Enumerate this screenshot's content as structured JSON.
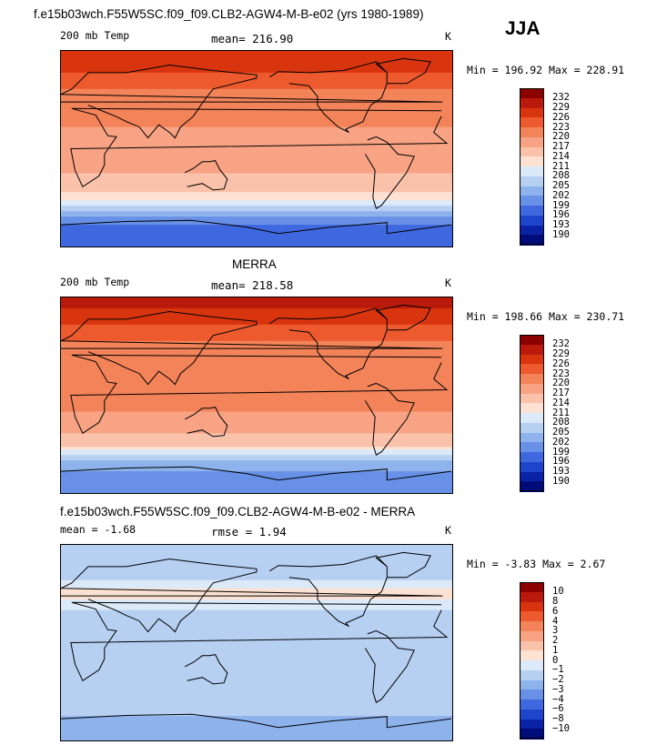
{
  "header": {
    "case_title": "f.e15b03wch.F55W5SC.f09_f09.CLB2-AGW4-M-B-e02 (yrs 1980-1989)",
    "season": "JJA"
  },
  "panels": [
    {
      "id": "model",
      "title": "",
      "left_label": "200 mb Temp",
      "mean_text": "mean= 216.90",
      "units": "K",
      "min_max_text": "Min = 196.92 Max = 228.91"
    },
    {
      "id": "obs",
      "title": "MERRA",
      "left_label": "200 mb Temp",
      "mean_text": "mean= 218.58",
      "units": "K",
      "min_max_text": "Min = 198.66 Max = 230.71"
    },
    {
      "id": "diff",
      "title": "f.e15b03wch.F55W5SC.f09_f09.CLB2-AGW4-M-B-e02 - MERRA",
      "left_label": "mean =  -1.68",
      "mean_text": "rmse =   1.94",
      "units": "K",
      "min_max_text": "Min =  -3.83 Max =   2.67"
    }
  ],
  "chart_data": [
    {
      "type": "heatmap",
      "name": "model 200 mb Temp",
      "mean": 216.9,
      "min": 196.92,
      "max": 228.91,
      "units": "K",
      "colorbar": {
        "labels": [
          "232",
          "229",
          "226",
          "223",
          "220",
          "217",
          "214",
          "211",
          "208",
          "205",
          "202",
          "199",
          "196",
          "193",
          "190"
        ],
        "colors": [
          "#8b0000",
          "#b91a0b",
          "#d8350f",
          "#ec5a2e",
          "#f38359",
          "#f7a384",
          "#fac2aa",
          "#fde2d3",
          "#dbe9f8",
          "#b7d0f2",
          "#8eb2ec",
          "#6890e6",
          "#3f68de",
          "#1f44cc",
          "#0a22a6",
          "#000c7a"
        ]
      },
      "zonal_profile_K": [
        {
          "lat": 90,
          "value": 229
        },
        {
          "lat": 75,
          "value": 227
        },
        {
          "lat": 60,
          "value": 224
        },
        {
          "lat": 45,
          "value": 221
        },
        {
          "lat": 30,
          "value": 222
        },
        {
          "lat": 15,
          "value": 219
        },
        {
          "lat": 0,
          "value": 218
        },
        {
          "lat": -15,
          "value": 218
        },
        {
          "lat": -30,
          "value": 216
        },
        {
          "lat": -45,
          "value": 213
        },
        {
          "lat": -60,
          "value": 203
        },
        {
          "lat": -75,
          "value": 197
        },
        {
          "lat": -90,
          "value": 197
        }
      ]
    },
    {
      "type": "heatmap",
      "name": "MERRA 200 mb Temp",
      "mean": 218.58,
      "min": 198.66,
      "max": 230.71,
      "units": "K",
      "colorbar": {
        "labels": [
          "232",
          "229",
          "226",
          "223",
          "220",
          "217",
          "214",
          "211",
          "208",
          "205",
          "202",
          "199",
          "196",
          "193",
          "190"
        ],
        "colors": [
          "#8b0000",
          "#b91a0b",
          "#d8350f",
          "#ec5a2e",
          "#f38359",
          "#f7a384",
          "#fac2aa",
          "#fde2d3",
          "#dbe9f8",
          "#b7d0f2",
          "#8eb2ec",
          "#6890e6",
          "#3f68de",
          "#1f44cc",
          "#0a22a6",
          "#000c7a"
        ]
      },
      "zonal_profile_K": [
        {
          "lat": 90,
          "value": 231
        },
        {
          "lat": 75,
          "value": 228
        },
        {
          "lat": 60,
          "value": 225
        },
        {
          "lat": 45,
          "value": 222
        },
        {
          "lat": 30,
          "value": 223
        },
        {
          "lat": 15,
          "value": 220
        },
        {
          "lat": 0,
          "value": 220
        },
        {
          "lat": -15,
          "value": 220
        },
        {
          "lat": -30,
          "value": 218
        },
        {
          "lat": -45,
          "value": 215
        },
        {
          "lat": -60,
          "value": 205
        },
        {
          "lat": -75,
          "value": 200
        },
        {
          "lat": -90,
          "value": 199
        }
      ]
    },
    {
      "type": "heatmap",
      "name": "model - MERRA difference",
      "mean": -1.68,
      "rmse": 1.94,
      "min": -3.83,
      "max": 2.67,
      "units": "K",
      "colorbar": {
        "labels": [
          "10",
          "8",
          "6",
          "4",
          "3",
          "2",
          "1",
          "0",
          "−1",
          "−2",
          "−3",
          "−4",
          "−6",
          "−8",
          "−10"
        ],
        "colors": [
          "#8b0000",
          "#b91a0b",
          "#d8350f",
          "#ec5a2e",
          "#f38359",
          "#f7a384",
          "#fac2aa",
          "#fde2d3",
          "#dbe9f8",
          "#b7d0f2",
          "#8eb2ec",
          "#6890e6",
          "#3f68de",
          "#1f44cc",
          "#0a22a6",
          "#000c7a"
        ]
      },
      "zonal_profile_K": [
        {
          "lat": 90,
          "value": -2
        },
        {
          "lat": 75,
          "value": -1
        },
        {
          "lat": 60,
          "value": -1.5
        },
        {
          "lat": 45,
          "value": 0.5
        },
        {
          "lat": 30,
          "value": -1
        },
        {
          "lat": 15,
          "value": -1.5
        },
        {
          "lat": 0,
          "value": -2
        },
        {
          "lat": -15,
          "value": -2
        },
        {
          "lat": -30,
          "value": -1.5
        },
        {
          "lat": -45,
          "value": -2
        },
        {
          "lat": -60,
          "value": -1.5
        },
        {
          "lat": -75,
          "value": -2.5
        },
        {
          "lat": -90,
          "value": -2
        }
      ]
    }
  ]
}
